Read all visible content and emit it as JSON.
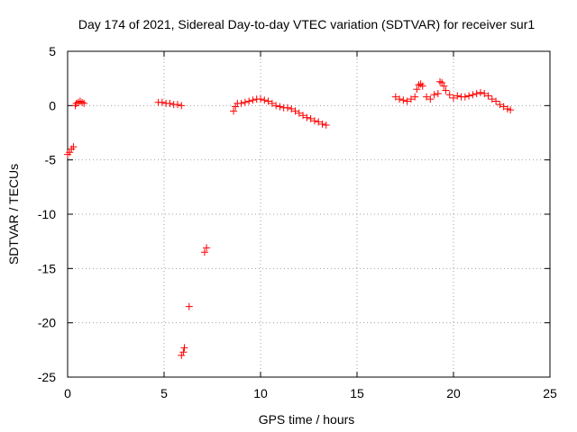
{
  "chart_data": {
    "type": "scatter",
    "title": "Day 174 of 2021, Sidereal Day-to-day VTEC variation (SDTVAR) for receiver sur1",
    "xlabel": "GPS time / hours",
    "ylabel": "SDTVAR / TECUs",
    "xlim": [
      0,
      25
    ],
    "ylim": [
      -25,
      5
    ],
    "xticks": [
      "0",
      "5",
      "10",
      "15",
      "20",
      "25"
    ],
    "yticks": [
      "5",
      "0",
      "-5",
      "-10",
      "-15",
      "-20",
      "-25"
    ],
    "grid": true,
    "marker": "+",
    "color": "#ff0000",
    "series": [
      {
        "name": "sur1",
        "x": [
          0.0,
          0.1,
          0.2,
          0.3,
          0.4,
          0.45,
          0.55,
          0.65,
          0.75,
          0.85,
          4.7,
          4.9,
          5.1,
          5.3,
          5.5,
          5.7,
          5.9,
          5.9,
          6.0,
          6.05,
          6.3,
          7.1,
          7.2,
          8.6,
          8.7,
          8.8,
          9.0,
          9.2,
          9.4,
          9.6,
          9.8,
          10.0,
          10.2,
          10.4,
          10.6,
          10.8,
          11.0,
          11.2,
          11.4,
          11.6,
          11.8,
          12.0,
          12.2,
          12.4,
          12.6,
          12.8,
          13.0,
          13.2,
          13.4,
          17.0,
          17.2,
          17.4,
          17.6,
          17.8,
          18.0,
          18.1,
          18.2,
          18.3,
          18.4,
          18.6,
          18.8,
          19.0,
          19.2,
          19.3,
          19.4,
          19.5,
          19.6,
          19.8,
          20.0,
          20.2,
          20.4,
          20.6,
          20.8,
          21.0,
          21.2,
          21.4,
          21.6,
          21.8,
          22.0,
          22.2,
          22.4,
          22.6,
          22.8,
          22.95
        ],
        "y": [
          -4.5,
          -4.3,
          -4.0,
          -3.8,
          0.0,
          0.2,
          0.3,
          0.4,
          0.3,
          0.2,
          0.3,
          0.3,
          0.2,
          0.2,
          0.1,
          0.1,
          0.0,
          -23.0,
          -22.7,
          -22.3,
          -18.5,
          -13.5,
          -13.1,
          -0.5,
          -0.1,
          0.2,
          0.2,
          0.3,
          0.4,
          0.5,
          0.6,
          0.6,
          0.5,
          0.4,
          0.2,
          0.0,
          -0.1,
          -0.2,
          -0.2,
          -0.3,
          -0.5,
          -0.7,
          -0.9,
          -1.1,
          -1.2,
          -1.4,
          -1.5,
          -1.7,
          -1.8,
          0.8,
          0.6,
          0.5,
          0.4,
          0.6,
          0.8,
          1.5,
          1.9,
          2.0,
          1.8,
          0.8,
          0.6,
          1.0,
          1.1,
          2.2,
          2.1,
          1.8,
          1.4,
          1.0,
          0.7,
          0.9,
          0.8,
          0.8,
          0.9,
          1.0,
          1.1,
          1.2,
          1.1,
          0.9,
          0.6,
          0.4,
          0.1,
          -0.1,
          -0.3,
          -0.4
        ]
      }
    ]
  }
}
